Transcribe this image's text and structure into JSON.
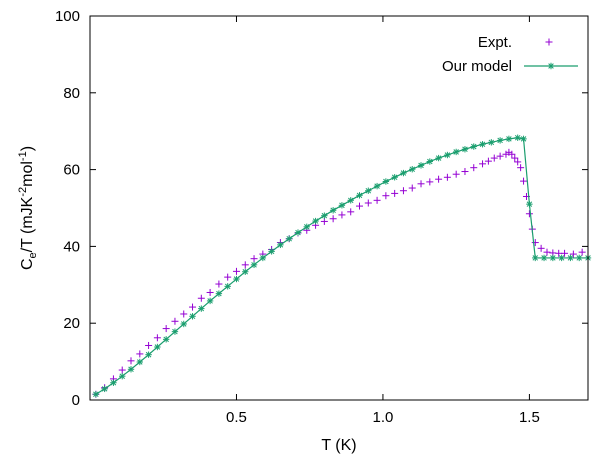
{
  "chart_data": {
    "type": "scatter",
    "xlabel": "T (K)",
    "ylabel": {
      "base": "C",
      "sub": "e",
      "mid": "/T (mJK",
      "sup1": "-2",
      "mid2": "mol",
      "sup2": "-1",
      "end": ")"
    },
    "xlim": [
      0.0,
      1.7
    ],
    "ylim": [
      0,
      100
    ],
    "xticks": [
      {
        "value": 0.5,
        "label": "0.5"
      },
      {
        "value": 1.0,
        "label": "1.0"
      },
      {
        "value": 1.5,
        "label": "1.5"
      }
    ],
    "yticks": [
      {
        "value": 0,
        "label": "0"
      },
      {
        "value": 20,
        "label": "20"
      },
      {
        "value": 40,
        "label": "40"
      },
      {
        "value": 60,
        "label": "60"
      },
      {
        "value": 80,
        "label": "80"
      },
      {
        "value": 100,
        "label": "100"
      }
    ],
    "grid": false,
    "legend_position": "top-right",
    "series": [
      {
        "name": "Expt.",
        "style": "points",
        "marker": "plus",
        "color": "#9400d3",
        "x": [
          0.02,
          0.05,
          0.08,
          0.11,
          0.14,
          0.17,
          0.2,
          0.23,
          0.26,
          0.29,
          0.32,
          0.35,
          0.38,
          0.41,
          0.44,
          0.47,
          0.5,
          0.53,
          0.56,
          0.59,
          0.62,
          0.65,
          0.68,
          0.71,
          0.74,
          0.77,
          0.8,
          0.83,
          0.86,
          0.89,
          0.92,
          0.95,
          0.98,
          1.01,
          1.04,
          1.07,
          1.1,
          1.13,
          1.16,
          1.19,
          1.22,
          1.25,
          1.28,
          1.31,
          1.34,
          1.36,
          1.38,
          1.4,
          1.42,
          1.43,
          1.44,
          1.45,
          1.46,
          1.47,
          1.48,
          1.49,
          1.5,
          1.51,
          1.52,
          1.54,
          1.56,
          1.58,
          1.6,
          1.62,
          1.65,
          1.68
        ],
        "y": [
          1.5,
          3.2,
          5.5,
          7.8,
          10.2,
          12.0,
          14.2,
          16.2,
          18.6,
          20.5,
          22.4,
          24.2,
          26.5,
          28.0,
          30.2,
          32.0,
          33.5,
          35.2,
          36.8,
          38.0,
          39.2,
          41.0,
          42.0,
          43.5,
          44.2,
          45.5,
          46.5,
          47.2,
          48.2,
          49.0,
          50.5,
          51.3,
          52.0,
          53.2,
          53.8,
          54.5,
          55.2,
          56.3,
          56.8,
          57.5,
          58.0,
          58.8,
          59.5,
          60.5,
          61.5,
          62.2,
          63.0,
          63.5,
          64.0,
          64.5,
          64.0,
          63.0,
          62.0,
          60.5,
          57.0,
          53.0,
          48.5,
          44.5,
          41.0,
          39.5,
          38.5,
          38.3,
          38.2,
          38.2,
          38.0,
          38.5
        ]
      },
      {
        "name": "Our model",
        "style": "linespoints",
        "marker": "star",
        "color": "#1a9e6e",
        "x": [
          0.02,
          0.05,
          0.08,
          0.11,
          0.14,
          0.17,
          0.2,
          0.23,
          0.26,
          0.29,
          0.32,
          0.35,
          0.38,
          0.41,
          0.44,
          0.47,
          0.5,
          0.53,
          0.56,
          0.59,
          0.62,
          0.65,
          0.68,
          0.71,
          0.74,
          0.77,
          0.8,
          0.83,
          0.86,
          0.89,
          0.92,
          0.95,
          0.98,
          1.01,
          1.04,
          1.07,
          1.1,
          1.13,
          1.16,
          1.19,
          1.22,
          1.25,
          1.28,
          1.31,
          1.34,
          1.37,
          1.4,
          1.43,
          1.46,
          1.48,
          1.5,
          1.52,
          1.55,
          1.58,
          1.61,
          1.64,
          1.67,
          1.7
        ],
        "y": [
          1.5,
          2.9,
          4.5,
          6.2,
          8.0,
          9.9,
          11.8,
          13.8,
          15.8,
          17.8,
          19.8,
          21.8,
          23.8,
          25.8,
          27.7,
          29.6,
          31.5,
          33.4,
          35.2,
          37.0,
          38.7,
          40.4,
          42.0,
          43.6,
          45.1,
          46.6,
          48.0,
          49.4,
          50.7,
          52.0,
          53.3,
          54.5,
          55.7,
          56.9,
          58.0,
          59.1,
          60.1,
          61.1,
          62.1,
          63.0,
          63.8,
          64.6,
          65.3,
          66.0,
          66.6,
          67.1,
          67.6,
          68.0,
          68.3,
          68.0,
          51.0,
          37.0,
          37.0,
          37.0,
          37.0,
          37.0,
          37.0,
          37.0
        ]
      }
    ]
  }
}
